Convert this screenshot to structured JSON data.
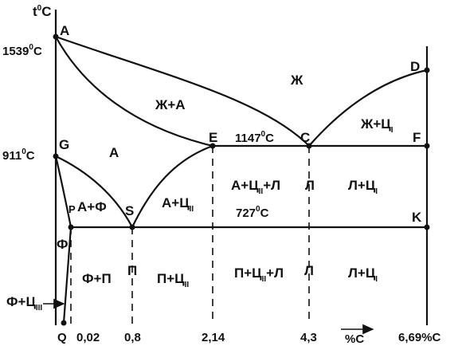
{
  "axes": {
    "y_title": "t",
    "y_title_sup": "0",
    "y_title_unit": "C",
    "x_title": "%C"
  },
  "temperatures": {
    "t1539": "1539",
    "t1539_sup": "0",
    "t1539_unit": "C",
    "t911": "911",
    "t911_sup": "0",
    "t911_unit": "C",
    "t1147": "1147",
    "t1147_sup": "0",
    "t1147_unit": "C",
    "t727": "727",
    "t727_sup": "0",
    "t727_unit": "C"
  },
  "points": {
    "A": "A",
    "D": "D",
    "G": "G",
    "E": "E",
    "C": "C",
    "F": "F",
    "P": "P",
    "S": "S",
    "K": "K",
    "Q": "Q"
  },
  "x_ticks": {
    "t002": "0,02",
    "t08": "0,8",
    "t214": "2,14",
    "t43": "4,3",
    "t669": "6,69%C"
  },
  "regions": {
    "liquid": "Ж",
    "liquid_austenite": "Ж+А",
    "austenite": "А",
    "liquid_cementite": "Ж+Ц",
    "liquid_cementite_sub": "I",
    "austenite_ferrite": "А+Ф",
    "austenite_cementite": "А+Ц",
    "austenite_cementite_sub": "II",
    "austenite_cem_ledeburite_a": "А+Ц",
    "austenite_cem_ledeburite_sub": "II",
    "austenite_cem_ledeburite_b": "+Л",
    "ledeburite_upper": "Л",
    "ledeburite_cementite_upper": "Л+Ц",
    "ledeburite_cementite_upper_sub": "I",
    "ferrite": "Ф",
    "ferrite_pearlite": "Ф+П",
    "pearlite": "П",
    "pearlite_cementite": "П+Ц",
    "pearlite_cementite_sub": "II",
    "pearlite_cem_ledeburite_a": "П+Ц",
    "pearlite_cem_ledeburite_sub": "II",
    "pearlite_cem_ledeburite_b": "+Л",
    "ledeburite_lower": "Л",
    "ledeburite_cementite_lower": "Л+Ц",
    "ledeburite_cementite_lower_sub": "I",
    "ferrite_cementite": "Ф+Ц",
    "ferrite_cementite_sub": "III"
  }
}
